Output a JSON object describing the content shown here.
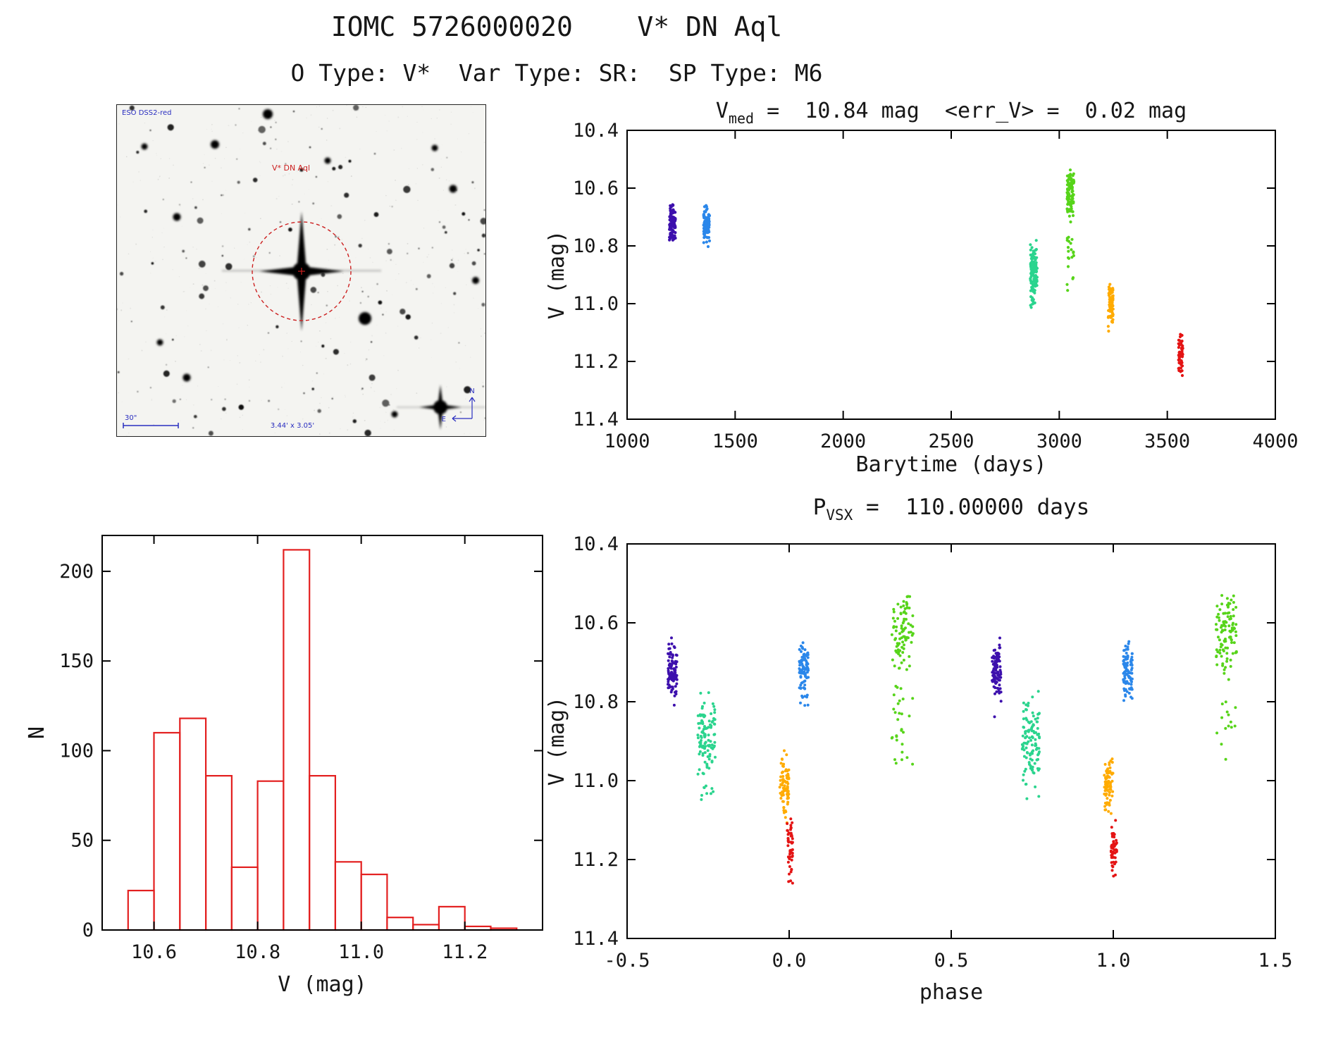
{
  "header": {
    "title": "IOMC 5726000020    V* DN Aql",
    "subtitle": "O Type: V*  Var Type: SR:  SP Type: M6"
  },
  "finding_chart": {
    "survey_label": "ESO DSS2-red",
    "target_label": "V* DN Aql",
    "scale_label": "30\"",
    "fov_label": "3.44' x 3.05'",
    "compass_north": "N",
    "compass_east": "E",
    "annotation_color": "#2a2ec0",
    "marker_color": "#cc2020"
  },
  "chart_data": [
    {
      "id": "lightcurve",
      "type": "scatter",
      "title": {
        "pre": "V",
        "sub": "med",
        "post": " =  10.84 mag  <err_V> =  0.02 mag"
      },
      "xlabel": "Barytime (days)",
      "ylabel": "V (mag)",
      "xlim": [
        1000,
        4000
      ],
      "ylim": [
        11.4,
        10.4
      ],
      "xticks": [
        1000,
        1500,
        2000,
        2500,
        3000,
        3500,
        4000
      ],
      "xtick_labels": [
        "1000",
        "1500",
        "2000",
        "2500",
        "3000",
        "3500",
        "4000"
      ],
      "yticks": [
        10.4,
        10.6,
        10.8,
        11.0,
        11.2,
        11.4
      ],
      "ytick_labels": [
        "10.4",
        "10.6",
        "10.8",
        "11.0",
        "11.2",
        "11.4"
      ],
      "marker_size": 2.1,
      "repeats": [
        0
      ],
      "series": [
        {
          "name": "epoch-1",
          "color": "#3d10ad",
          "x": 1210,
          "x_jitter": 14,
          "v_center": 10.72,
          "v_sigma": 0.032,
          "v_min": 10.63,
          "v_max": 10.81,
          "n": 95
        },
        {
          "name": "epoch-2",
          "color": "#2b87ea",
          "x": 1368,
          "x_jitter": 14,
          "v_center": 10.72,
          "v_sigma": 0.034,
          "v_min": 10.63,
          "v_max": 10.81,
          "n": 95
        },
        {
          "name": "epoch-3",
          "color": "#2bd48e",
          "x": 2882,
          "x_jitter": 16,
          "v_center": 10.89,
          "v_sigma": 0.046,
          "v_min": 10.77,
          "v_max": 11.0,
          "n": 115,
          "tail": {
            "min": 10.97,
            "max": 11.05,
            "frac": 0.1
          }
        },
        {
          "name": "epoch-4",
          "color": "#57d41a",
          "x": 3052,
          "x_jitter": 16,
          "v_center": 10.62,
          "v_sigma": 0.05,
          "v_min": 10.53,
          "v_max": 10.76,
          "n": 115,
          "tail": {
            "min": 10.76,
            "max": 10.96,
            "frac": 0.18
          }
        },
        {
          "name": "epoch-5",
          "color": "#ffab00",
          "x": 3238,
          "x_jitter": 12,
          "v_center": 11.01,
          "v_sigma": 0.04,
          "v_min": 10.92,
          "v_max": 11.1,
          "n": 75
        },
        {
          "name": "epoch-6",
          "color": "#e41414",
          "x": 3562,
          "x_jitter": 10,
          "v_center": 11.17,
          "v_sigma": 0.034,
          "v_min": 11.09,
          "v_max": 11.26,
          "n": 52
        }
      ]
    },
    {
      "id": "histogram",
      "type": "histogram",
      "xlabel": "V (mag)",
      "ylabel": "N",
      "xlim": [
        10.5,
        11.35
      ],
      "ylim": [
        0,
        220
      ],
      "xticks": [
        10.6,
        10.8,
        11.0,
        11.2
      ],
      "xtick_labels": [
        "10.6",
        "10.8",
        "11.0",
        "11.2"
      ],
      "yticks": [
        0,
        50,
        100,
        150,
        200
      ],
      "ytick_labels": [
        "0",
        "50",
        "100",
        "150",
        "200"
      ],
      "bar_color": "#e32020",
      "bin_start": 10.55,
      "bin_width": 0.05,
      "counts": [
        22,
        110,
        118,
        86,
        35,
        83,
        212,
        86,
        38,
        31,
        7,
        3,
        13,
        2,
        1
      ]
    },
    {
      "id": "phase",
      "type": "scatter",
      "title": {
        "pre": "P",
        "sub": "VSX",
        "post": " =  110.00000 days"
      },
      "xlabel": "phase",
      "ylabel": "V (mag)",
      "xlim": [
        -0.5,
        1.5
      ],
      "ylim": [
        11.4,
        10.4
      ],
      "xticks": [
        -0.5,
        0.0,
        0.5,
        1.0,
        1.5
      ],
      "xtick_labels": [
        "-0.5",
        "0.0",
        "0.5",
        "1.0",
        "1.5"
      ],
      "yticks": [
        10.4,
        10.6,
        10.8,
        11.0,
        11.2,
        11.4
      ],
      "ytick_labels": [
        "10.4",
        "10.6",
        "10.8",
        "11.0",
        "11.2",
        "11.4"
      ],
      "marker_size": 2.0,
      "repeats": [
        0,
        1
      ],
      "series": [
        {
          "name": "epoch-1",
          "color": "#3d10ad",
          "x": -0.36,
          "x_jitter": 0.014,
          "v_center": 10.72,
          "v_sigma": 0.032,
          "v_min": 10.63,
          "v_max": 10.84,
          "n": 95
        },
        {
          "name": "epoch-2",
          "color": "#2b87ea",
          "x": 0.045,
          "x_jitter": 0.014,
          "v_center": 10.72,
          "v_sigma": 0.034,
          "v_min": 10.63,
          "v_max": 10.82,
          "n": 95
        },
        {
          "name": "epoch-3",
          "color": "#2bd48e",
          "x": -0.255,
          "x_jitter": 0.027,
          "v_center": 10.89,
          "v_sigma": 0.046,
          "v_min": 10.77,
          "v_max": 11.0,
          "n": 115,
          "tail": {
            "min": 10.97,
            "max": 11.05,
            "frac": 0.1
          }
        },
        {
          "name": "epoch-4",
          "color": "#57d41a",
          "x": 0.35,
          "x_jitter": 0.033,
          "v_center": 10.62,
          "v_sigma": 0.05,
          "v_min": 10.53,
          "v_max": 10.76,
          "n": 115,
          "tail": {
            "min": 10.76,
            "max": 10.96,
            "frac": 0.18
          }
        },
        {
          "name": "epoch-5",
          "color": "#ffab00",
          "x": -0.015,
          "x_jitter": 0.014,
          "v_center": 11.01,
          "v_sigma": 0.04,
          "v_min": 10.92,
          "v_max": 11.12,
          "n": 75
        },
        {
          "name": "epoch-6",
          "color": "#e41414",
          "x": 0.002,
          "x_jitter": 0.009,
          "v_center": 11.17,
          "v_sigma": 0.034,
          "v_min": 11.09,
          "v_max": 11.26,
          "n": 52
        }
      ]
    }
  ]
}
